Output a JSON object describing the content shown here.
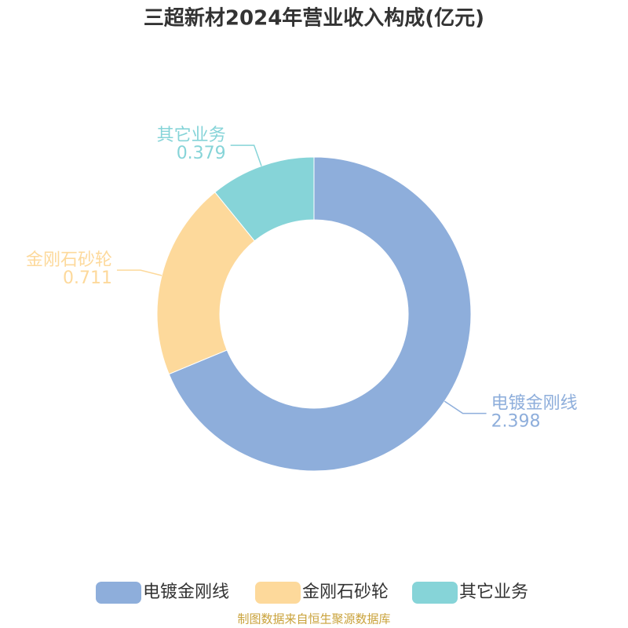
{
  "chart_data": {
    "type": "donut",
    "title": "三超新材2024年营业收入构成(亿元)",
    "categories": [
      "电镀金刚线",
      "金刚石砂轮",
      "其它业务"
    ],
    "values": [
      2.398,
      0.711,
      0.379
    ],
    "colors": [
      "#8eaedb",
      "#fdd99b",
      "#86d4d8"
    ],
    "source": "制图数据来自恒生聚源数据库"
  }
}
